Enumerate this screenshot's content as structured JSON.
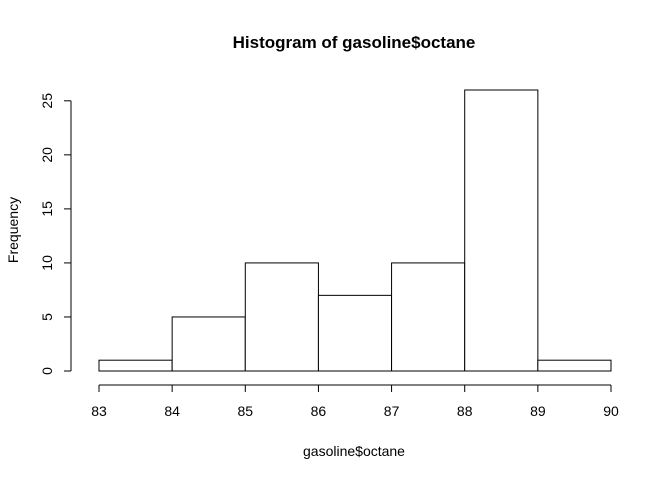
{
  "chart_data": {
    "type": "bar",
    "title": "Histogram of gasoline$octane",
    "xlabel": "gasoline$octane",
    "ylabel": "Frequency",
    "bins": [
      {
        "x0": 83,
        "x1": 84,
        "count": 1
      },
      {
        "x0": 84,
        "x1": 85,
        "count": 5
      },
      {
        "x0": 85,
        "x1": 86,
        "count": 10
      },
      {
        "x0": 86,
        "x1": 87,
        "count": 7
      },
      {
        "x0": 87,
        "x1": 88,
        "count": 10
      },
      {
        "x0": 88,
        "x1": 89,
        "count": 26
      },
      {
        "x0": 89,
        "x1": 90,
        "count": 1
      }
    ],
    "x_ticks": [
      83,
      84,
      85,
      86,
      87,
      88,
      89,
      90
    ],
    "y_ticks": [
      0,
      5,
      10,
      15,
      20,
      25
    ],
    "xlim": [
      83,
      90
    ],
    "ylim": [
      0,
      26
    ],
    "grid": false,
    "colors": {
      "bar_fill": "#ffffff",
      "bar_stroke": "#000000"
    }
  }
}
